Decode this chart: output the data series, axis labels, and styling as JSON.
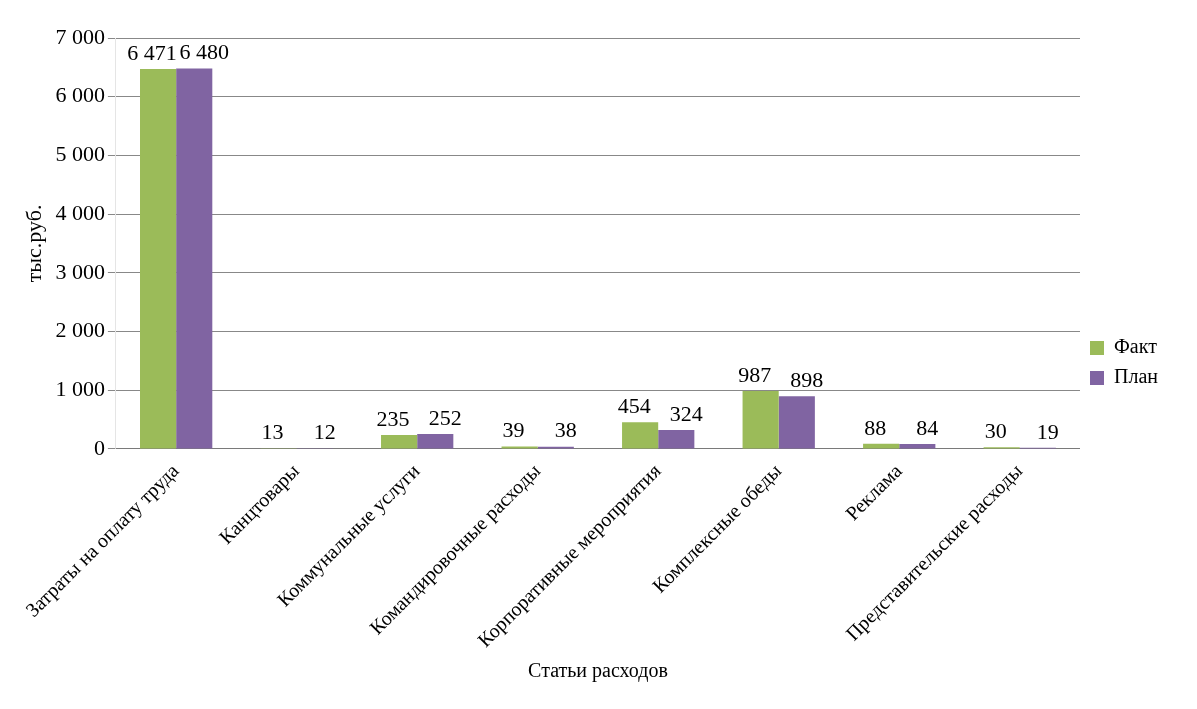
{
  "chart_data": {
    "type": "bar",
    "xlabel": "Статьи расходов",
    "ylabel": "тыс.руб.",
    "categories": [
      "Затраты на оплату труда",
      "Канцтовары",
      "Коммунальные услуги",
      "Командировочные расходы",
      "Корпоративные мероприятия",
      "Комплексные обеды",
      "Реклама",
      "Представительские расходы"
    ],
    "series": [
      {
        "name": "Факт",
        "color": "#9bbb59",
        "values": [
          6471,
          13,
          235,
          39,
          454,
          987,
          88,
          30
        ],
        "value_labels": [
          "6 471",
          "13",
          "235",
          "39",
          "454",
          "987",
          "88",
          "30"
        ]
      },
      {
        "name": "План",
        "color": "#8064a2",
        "values": [
          6480,
          12,
          252,
          38,
          324,
          898,
          84,
          19
        ],
        "value_labels": [
          "6 480",
          "12",
          "252",
          "38",
          "324",
          "898",
          "84",
          "19"
        ]
      }
    ],
    "ylim": [
      0,
      7000
    ],
    "yticks": [
      {
        "value": 0,
        "label": "0"
      },
      {
        "value": 1000,
        "label": "1 000"
      },
      {
        "value": 2000,
        "label": "2 000"
      },
      {
        "value": 3000,
        "label": "3 000"
      },
      {
        "value": 4000,
        "label": "4 000"
      },
      {
        "value": 5000,
        "label": "5 000"
      },
      {
        "value": 6000,
        "label": "6 000"
      },
      {
        "value": 7000,
        "label": "7 000"
      }
    ],
    "grid": "y",
    "legend": "right"
  }
}
